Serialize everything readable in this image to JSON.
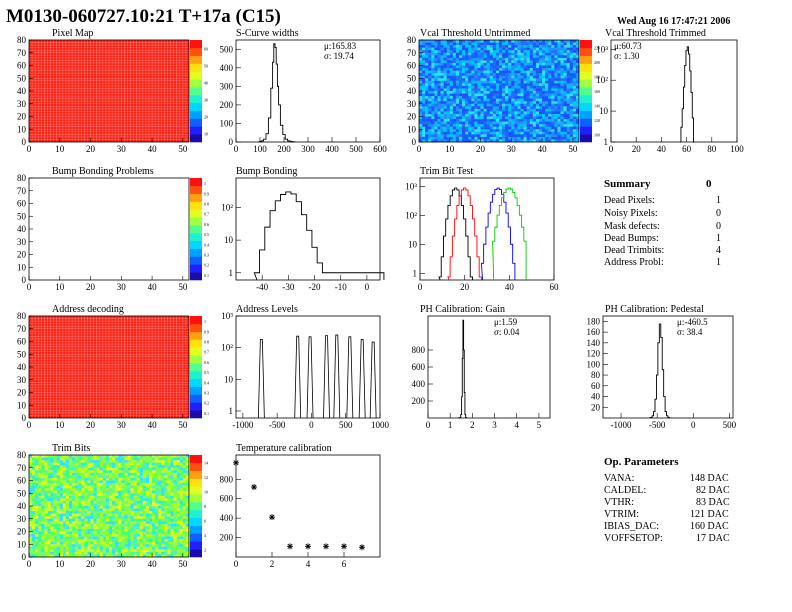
{
  "header": {
    "title": "M0130-060727.10:21 T+17a (C15)",
    "date": "Wed Aug 16 17:47:21 2006"
  },
  "chart_data": [
    {
      "id": "pixel-map",
      "type": "heatmap",
      "title": "Pixel Map",
      "xlim": [
        0,
        52
      ],
      "ylim": [
        0,
        80
      ],
      "xticks": [
        0,
        10,
        20,
        30,
        40,
        50
      ],
      "yticks": [
        0,
        10,
        20,
        30,
        40,
        50,
        60,
        70,
        80
      ],
      "fill": "uniform-max",
      "colorscale_labels": [
        "60",
        "50",
        "40",
        "30",
        "20",
        "10"
      ],
      "colors": {
        "fill": "#ff1d10",
        "grid": "#ff8b85"
      }
    },
    {
      "id": "s-curve-widths",
      "type": "histogram",
      "title": "S-Curve widths",
      "xlim": [
        0,
        600
      ],
      "ylim": [
        0,
        550
      ],
      "xticks": [
        0,
        100,
        200,
        300,
        400,
        500,
        600
      ],
      "yticks": [
        0,
        100,
        200,
        300,
        400,
        500
      ],
      "log": false,
      "stats": {
        "mean_label": "μ:165.83",
        "sigma_label": "σ: 19.74"
      },
      "x": [
        100,
        110,
        120,
        130,
        140,
        150,
        155,
        160,
        165,
        170,
        175,
        180,
        190,
        200,
        210,
        220,
        230,
        240
      ],
      "values": [
        2,
        6,
        15,
        45,
        130,
        290,
        430,
        530,
        510,
        420,
        300,
        200,
        90,
        40,
        15,
        6,
        3,
        1
      ]
    },
    {
      "id": "vcal-untrimmed",
      "type": "heatmap",
      "title": "Vcal Threshold Untrimmed",
      "xlim": [
        0,
        52
      ],
      "ylim": [
        0,
        80
      ],
      "xticks": [
        0,
        10,
        20,
        30,
        40,
        50
      ],
      "yticks": [
        0,
        10,
        20,
        30,
        40,
        50,
        60,
        70,
        80
      ],
      "fill": "noise-blue",
      "colorscale_labels": [
        "220",
        "200",
        "180",
        "160",
        "140",
        "120",
        "100"
      ]
    },
    {
      "id": "vcal-trimmed",
      "type": "histogram",
      "title": "Vcal Threshold Trimmed",
      "xlim": [
        0,
        100
      ],
      "ylog": [
        1,
        2000
      ],
      "xticks": [
        0,
        20,
        40,
        60,
        80,
        100
      ],
      "yticks": [
        1,
        10,
        100,
        1000
      ],
      "ytick_labels": [
        "1",
        "10",
        "10²",
        "10³"
      ],
      "log": true,
      "stats": {
        "mean_label": "μ:60.73",
        "sigma_label": "σ: 1.30"
      },
      "x": [
        55,
        56,
        57,
        58,
        59,
        60,
        61,
        62,
        63,
        64,
        65,
        66
      ],
      "values": [
        1,
        3,
        12,
        60,
        300,
        900,
        1200,
        700,
        200,
        40,
        6,
        1
      ]
    },
    {
      "id": "bump-bonding-problems",
      "type": "heatmap",
      "title": "Bump Bonding Problems",
      "xlim": [
        0,
        52
      ],
      "ylim": [
        0,
        80
      ],
      "xticks": [
        0,
        10,
        20,
        30,
        40,
        50
      ],
      "yticks": [
        0,
        10,
        20,
        30,
        40,
        50,
        60,
        70,
        80
      ],
      "fill": "empty",
      "colorscale_labels": [
        "1",
        "0.9",
        "0.8",
        "0.7",
        "0.6",
        "0.5",
        "0.4",
        "0.3",
        "0.2",
        "0.1"
      ]
    },
    {
      "id": "bump-bonding",
      "type": "histogram",
      "title": "Bump Bonding",
      "xlim": [
        -50,
        5
      ],
      "ylog": [
        0.6,
        800
      ],
      "xticks": [
        -40,
        -30,
        -20,
        -10,
        0
      ],
      "yticks": [
        1,
        10,
        100
      ],
      "ytick_labels": [
        "1",
        "10",
        "10²"
      ],
      "log": true,
      "x": [
        -42,
        -40,
        -38,
        -36,
        -34,
        -32,
        -30,
        -28,
        -26,
        -24,
        -22,
        -20,
        -18,
        -16,
        -1
      ],
      "values": [
        1,
        5,
        25,
        80,
        160,
        250,
        300,
        260,
        150,
        60,
        20,
        6,
        2,
        1,
        1
      ]
    },
    {
      "id": "trim-bit-test",
      "type": "histogram",
      "title": "Trim Bit Test",
      "xlim": [
        0,
        60
      ],
      "ylog": [
        0.6,
        2000
      ],
      "xticks": [
        0,
        20,
        40,
        60
      ],
      "yticks": [
        1,
        10,
        100,
        1000
      ],
      "ytick_labels": [
        "1",
        "10",
        "10²",
        "10³"
      ],
      "log": true,
      "series_colors": [
        "#000000",
        "#ff0000",
        "#0000ff",
        "#00cc00"
      ],
      "series": [
        {
          "center": 16,
          "width": 1.8
        },
        {
          "center": 20,
          "width": 1.8
        },
        {
          "center": 35,
          "width": 2.0
        },
        {
          "center": 40,
          "width": 2.4
        }
      ]
    },
    {
      "id": "address-decoding",
      "type": "heatmap",
      "title": "Address decoding",
      "xlim": [
        0,
        52
      ],
      "ylim": [
        0,
        80
      ],
      "xticks": [
        0,
        10,
        20,
        30,
        40,
        50
      ],
      "yticks": [
        0,
        10,
        20,
        30,
        40,
        50,
        60,
        70,
        80
      ],
      "fill": "uniform-max",
      "colorscale_labels": [
        "1",
        "0.9",
        "0.8",
        "0.7",
        "0.6",
        "0.5",
        "0.4",
        "0.3",
        "0.2",
        "0.1"
      ],
      "colors": {
        "fill": "#ff1d10",
        "grid": "#ff8b85"
      }
    },
    {
      "id": "address-levels",
      "type": "histogram",
      "title": "Address Levels",
      "xlim": [
        -1100,
        1000
      ],
      "ylog": [
        0.6,
        1000
      ],
      "xticks": [
        -1000,
        -500,
        0,
        500,
        1000
      ],
      "yticks": [
        1,
        10,
        100,
        1000
      ],
      "ytick_labels": [
        "1",
        "10",
        "10²",
        "10³"
      ],
      "log": true,
      "x": [
        -730,
        -200,
        -20,
        220,
        370,
        560,
        740,
        900
      ],
      "values": [
        180,
        230,
        220,
        240,
        250,
        220,
        180,
        150
      ]
    },
    {
      "id": "ph-calibration-gain",
      "type": "histogram",
      "title": "PH Calibration: Gain",
      "xlim": [
        0,
        5.5
      ],
      "ylim": [
        0,
        1200
      ],
      "xticks": [
        0,
        1,
        2,
        3,
        4,
        5
      ],
      "yticks": [
        200,
        400,
        600,
        800
      ],
      "log": false,
      "stats": {
        "mean_label": "μ:1.59",
        "sigma_label": "σ: 0.04"
      },
      "x": [
        1.45,
        1.5,
        1.53,
        1.56,
        1.59,
        1.62,
        1.65,
        1.68,
        1.72
      ],
      "values": [
        5,
        40,
        250,
        700,
        1150,
        800,
        300,
        40,
        5
      ]
    },
    {
      "id": "ph-calibration-pedestal",
      "type": "histogram",
      "title": "PH Calibration: Pedestal",
      "xlim": [
        -1250,
        550
      ],
      "ylim": [
        0,
        190
      ],
      "xticks": [
        -1000,
        -500,
        0,
        500
      ],
      "yticks": [
        20,
        40,
        60,
        80,
        100,
        120,
        140,
        160,
        180
      ],
      "log": false,
      "stats": {
        "mean_label": "μ:-460.5",
        "sigma_label": "σ: 38.4"
      },
      "x": [
        -580,
        -560,
        -540,
        -520,
        -500,
        -480,
        -460,
        -440,
        -420,
        -400,
        -380,
        -360,
        -340
      ],
      "values": [
        1,
        4,
        12,
        35,
        80,
        140,
        175,
        150,
        90,
        40,
        12,
        4,
        1
      ]
    },
    {
      "id": "trim-bits",
      "type": "heatmap",
      "title": "Trim Bits",
      "xlim": [
        0,
        52
      ],
      "ylim": [
        0,
        80
      ],
      "xticks": [
        0,
        10,
        20,
        30,
        40,
        50
      ],
      "yticks": [
        0,
        10,
        20,
        30,
        40,
        50,
        60,
        70,
        80
      ],
      "fill": "noise-green",
      "colorscale_labels": [
        "14",
        "12",
        "10",
        "8",
        "6",
        "4",
        "2"
      ]
    },
    {
      "id": "temperature-calibration",
      "type": "scatter",
      "title": "Temperature calibration",
      "xlim": [
        0,
        8
      ],
      "ylim": [
        0,
        1050
      ],
      "xticks": [
        0,
        2,
        4,
        6
      ],
      "yticks": [
        200,
        400,
        600,
        800
      ],
      "x": [
        0,
        1,
        2,
        3,
        4,
        5,
        6,
        7
      ],
      "y": [
        970,
        720,
        410,
        110,
        110,
        110,
        110,
        100
      ]
    }
  ],
  "summary": {
    "title": "Summary",
    "title_value": "0",
    "rows": [
      {
        "label": "Dead Pixels:",
        "value": "1"
      },
      {
        "label": "Noisy Pixels:",
        "value": "0"
      },
      {
        "label": "Mask defects:",
        "value": "0"
      },
      {
        "label": "Dead Bumps:",
        "value": "1"
      },
      {
        "label": "Dead Trimbits:",
        "value": "4"
      },
      {
        "label": "Address Probl:",
        "value": "1"
      }
    ]
  },
  "op_parameters": {
    "title": "Op. Parameters",
    "rows": [
      {
        "label": "VANA:",
        "value": "148 DAC"
      },
      {
        "label": "CALDEL:",
        "value": "82 DAC"
      },
      {
        "label": "VTHR:",
        "value": "83 DAC"
      },
      {
        "label": "VTRIM:",
        "value": "121 DAC"
      },
      {
        "label": "IBIAS_DAC:",
        "value": "160 DAC"
      },
      {
        "label": "VOFFSETOP:",
        "value": "17 DAC"
      }
    ]
  }
}
